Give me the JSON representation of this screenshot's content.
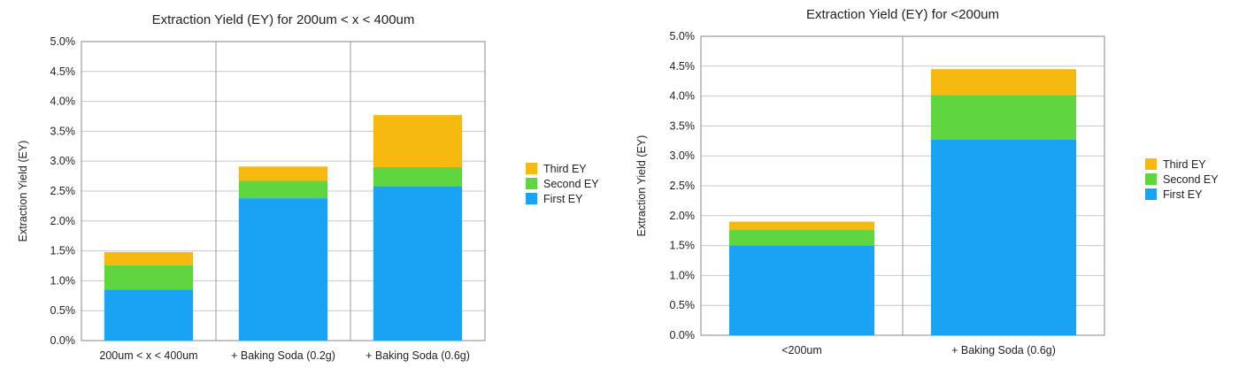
{
  "chart_data": [
    {
      "type": "bar",
      "stacked": true,
      "title": "Extraction Yield (EY) for 200um < x < 400um",
      "ylabel": "Extraction Yield (EY)",
      "xlabel": "",
      "ylim": [
        0,
        0.05
      ],
      "yticks": [
        "0.0%",
        "0.5%",
        "1.0%",
        "1.5%",
        "2.0%",
        "2.5%",
        "3.0%",
        "3.5%",
        "4.0%",
        "4.5%",
        "5.0%"
      ],
      "categories": [
        "200um < x < 400um",
        "+ Baking Soda (0.2g)",
        "+ Baking Soda (0.6g)"
      ],
      "series": [
        {
          "name": "First EY",
          "color": "#1aa3f5",
          "values": [
            0.0085,
            0.0238,
            0.0258
          ]
        },
        {
          "name": "Second EY",
          "color": "#5fd63f",
          "values": [
            0.0041,
            0.0029,
            0.0032
          ]
        },
        {
          "name": "Third EY",
          "color": "#f6b90f",
          "values": [
            0.0022,
            0.0024,
            0.0087
          ]
        }
      ],
      "legend_order": [
        "Third EY",
        "Second EY",
        "First EY"
      ],
      "legend_position": "right",
      "grid": true
    },
    {
      "type": "bar",
      "stacked": true,
      "title": "Extraction Yield (EY) for <200um",
      "ylabel": "Extraction Yield (EY)",
      "xlabel": "",
      "ylim": [
        0,
        0.05
      ],
      "yticks": [
        "0.0%",
        "0.5%",
        "1.0%",
        "1.5%",
        "2.0%",
        "2.5%",
        "3.0%",
        "3.5%",
        "4.0%",
        "4.5%",
        "5.0%"
      ],
      "categories": [
        "<200um",
        "+ Baking Soda (0.6g)"
      ],
      "series": [
        {
          "name": "First EY",
          "color": "#1aa3f5",
          "values": [
            0.015,
            0.0327
          ]
        },
        {
          "name": "Second EY",
          "color": "#5fd63f",
          "values": [
            0.0026,
            0.0075
          ]
        },
        {
          "name": "Third EY",
          "color": "#f6b90f",
          "values": [
            0.0014,
            0.0043
          ]
        }
      ],
      "legend_order": [
        "Third EY",
        "Second EY",
        "First EY"
      ],
      "legend_position": "right",
      "grid": true
    }
  ]
}
